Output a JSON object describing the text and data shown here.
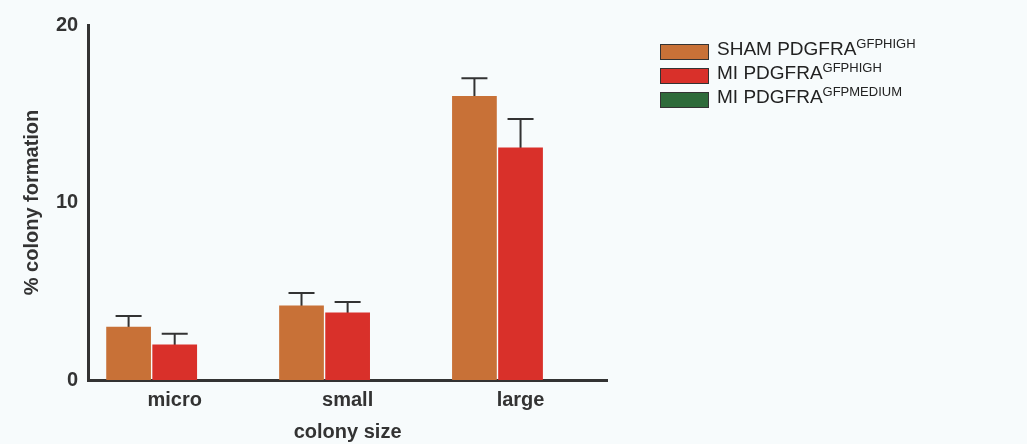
{
  "chart_data": {
    "type": "bar",
    "xlabel": "colony size",
    "ylabel": "% colony formation",
    "categories": [
      "micro",
      "small",
      "large"
    ],
    "series": [
      {
        "name": "SHAM PDGFRA$^{GFPHIGH}$",
        "color": "#c87137",
        "values": [
          3.0,
          4.2,
          16.0
        ],
        "errors": [
          0.6,
          0.7,
          1.0
        ]
      },
      {
        "name": "MI PDGFRA$^{GFPHIGH}$",
        "color": "#d9302a",
        "values": [
          2.0,
          3.8,
          13.1
        ],
        "errors": [
          0.6,
          0.6,
          1.6
        ]
      },
      {
        "name": "MI PDGFRA$^{GFPMEDIUM}$",
        "color": "#2e6b3a",
        "values": [
          null,
          null,
          null
        ]
      }
    ],
    "ylim": [
      0,
      20
    ],
    "yticks": [
      0,
      10,
      20
    ],
    "grid": false,
    "legend": "top right"
  }
}
